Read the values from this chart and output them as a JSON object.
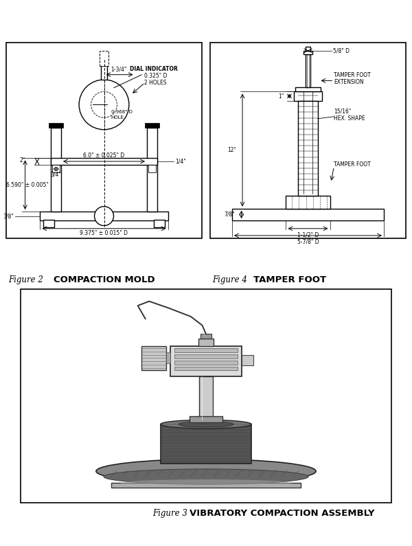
{
  "bg_color": "#ffffff",
  "line_color": "#000000",
  "fig2_caption_left": "Figure 2",
  "fig2_caption_right": "COMPACTION MOLD",
  "fig3_caption_left": "Figure 3",
  "fig3_caption_right": "VIBRATORY COMPACTION ASSEMBLY",
  "fig4_caption_left": "Figure 4",
  "fig4_caption_right": "TAMPER FOOT"
}
